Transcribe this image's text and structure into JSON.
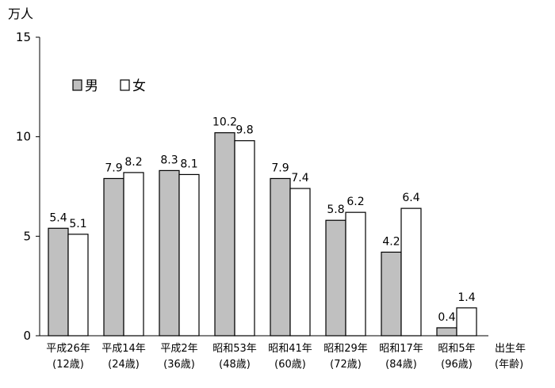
{
  "chart_data": {
    "type": "bar",
    "unit_label": "万人",
    "xlabel": "出生年\n(年齢)",
    "ylim": [
      0,
      15
    ],
    "yticks": [
      0,
      5,
      10,
      15
    ],
    "grid": false,
    "legend_position": "top-left",
    "categories": [
      [
        "平成26年",
        "(12歳)"
      ],
      [
        "平成14年",
        "(24歳)"
      ],
      [
        "平成2年",
        "(36歳)"
      ],
      [
        "昭和53年",
        "(48歳)"
      ],
      [
        "昭和41年",
        "(60歳)"
      ],
      [
        "昭和29年",
        "(72歳)"
      ],
      [
        "昭和17年",
        "(84歳)"
      ],
      [
        "昭和5年",
        "(96歳)"
      ]
    ],
    "series": [
      {
        "name": "男",
        "color": "#c0c0c0",
        "values": [
          5.4,
          7.9,
          8.3,
          10.2,
          7.9,
          5.8,
          4.2,
          0.4
        ]
      },
      {
        "name": "女",
        "color": "#ffffff",
        "values": [
          5.1,
          8.2,
          8.1,
          9.8,
          7.4,
          6.2,
          6.4,
          1.4
        ]
      }
    ]
  }
}
